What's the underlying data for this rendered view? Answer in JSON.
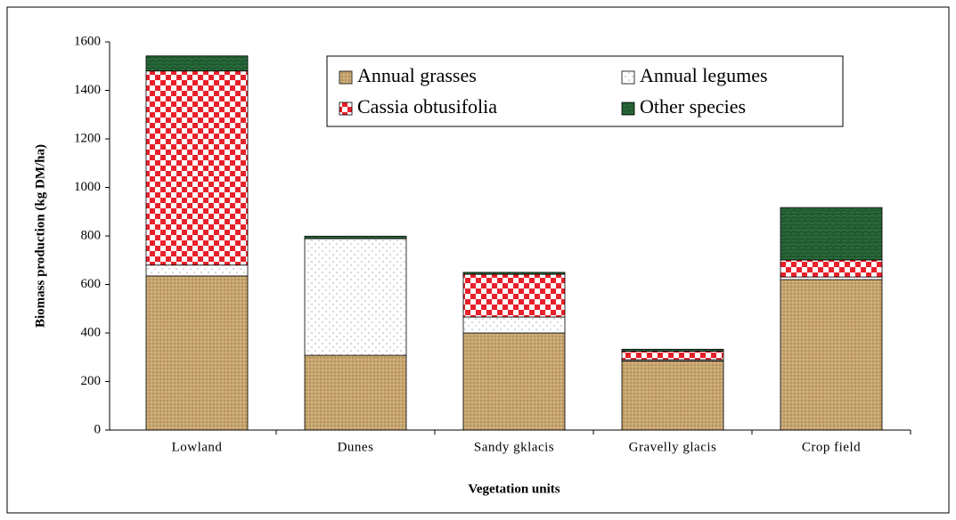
{
  "chart_data": {
    "type": "stacked_bar",
    "y_label": "Biomass production (kg DM/ha)",
    "x_label": "Vegetation units",
    "categories": [
      "Lowland",
      "Dunes",
      "Sandy gklacis",
      "Gravelly glacis",
      "Crop field"
    ],
    "series": [
      {
        "name": "Annual grasses",
        "color": "#c8a46c",
        "values": [
          635,
          308,
          400,
          285,
          620
        ]
      },
      {
        "name": "Annual legumes",
        "color": "#ffffff",
        "values": [
          45,
          481,
          66,
          5,
          11
        ]
      },
      {
        "name": "Cassia obtusifolia",
        "color": "#e8202a",
        "values": [
          800,
          0,
          176,
          35,
          70
        ]
      },
      {
        "name": "Other species",
        "color": "#1f5a2e",
        "values": [
          62,
          10,
          8,
          8,
          216
        ]
      }
    ],
    "ylim": [
      0,
      1600
    ],
    "yticks": [
      0,
      200,
      400,
      600,
      800,
      1000,
      1200,
      1400,
      1600
    ],
    "grid": false
  }
}
